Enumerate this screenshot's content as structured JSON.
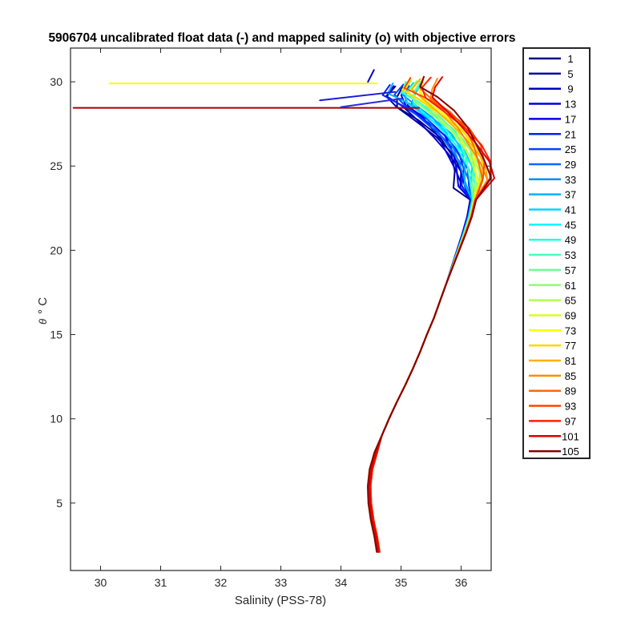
{
  "chart_data": {
    "type": "line",
    "title": "5906704 uncalibrated float data (-) and mapped salinity (o) with objective errors",
    "xlabel": "Salinity (PSS-78)",
    "ylabel_symbol": "θ",
    "ylabel_unit": "° C",
    "xlim": [
      29.5,
      36.5
    ],
    "ylim": [
      1.0,
      32.0
    ],
    "xticks": [
      30,
      31,
      32,
      33,
      34,
      35,
      36
    ],
    "yticks": [
      5,
      10,
      15,
      20,
      25,
      30
    ],
    "grid": false,
    "legend_position": "outside-right",
    "base_profile": [
      [
        34.62,
        2.1
      ],
      [
        34.58,
        3.0
      ],
      [
        34.52,
        4.0
      ],
      [
        34.48,
        5.0
      ],
      [
        34.47,
        6.0
      ],
      [
        34.5,
        7.0
      ],
      [
        34.58,
        8.0
      ],
      [
        34.68,
        9.0
      ],
      [
        34.8,
        10.0
      ],
      [
        34.93,
        11.0
      ],
      [
        35.07,
        12.0
      ],
      [
        35.2,
        13.0
      ],
      [
        35.32,
        14.0
      ],
      [
        35.43,
        15.0
      ],
      [
        35.55,
        16.0
      ],
      [
        35.65,
        17.0
      ],
      [
        35.75,
        18.0
      ],
      [
        35.85,
        19.0
      ],
      [
        35.95,
        20.0
      ],
      [
        36.05,
        21.0
      ],
      [
        36.14,
        22.0
      ],
      [
        36.2,
        23.0
      ],
      [
        36.22,
        24.0
      ],
      [
        36.18,
        25.0
      ],
      [
        36.05,
        26.0
      ],
      [
        35.85,
        27.0
      ],
      [
        35.55,
        28.0
      ],
      [
        35.25,
        28.8
      ],
      [
        35.1,
        29.4
      ],
      [
        35.2,
        30.0
      ]
    ],
    "series": [
      {
        "name": "1",
        "color": "#000087"
      },
      {
        "name": "5",
        "color": "#0000a3"
      },
      {
        "name": "9",
        "color": "#0000bf"
      },
      {
        "name": "13",
        "color": "#0000db"
      },
      {
        "name": "17",
        "color": "#0000f7"
      },
      {
        "name": "21",
        "color": "#0021ff"
      },
      {
        "name": "25",
        "color": "#0045ff"
      },
      {
        "name": "29",
        "color": "#0069ff"
      },
      {
        "name": "33",
        "color": "#008dff"
      },
      {
        "name": "37",
        "color": "#00b1ff"
      },
      {
        "name": "41",
        "color": "#00d5ff"
      },
      {
        "name": "45",
        "color": "#00f9ff"
      },
      {
        "name": "49",
        "color": "#21ffde"
      },
      {
        "name": "53",
        "color": "#45ffba"
      },
      {
        "name": "57",
        "color": "#69ff96"
      },
      {
        "name": "61",
        "color": "#8dff72"
      },
      {
        "name": "65",
        "color": "#b1ff4e"
      },
      {
        "name": "69",
        "color": "#d5ff2a"
      },
      {
        "name": "73",
        "color": "#f9ff06"
      },
      {
        "name": "77",
        "color": "#ffd500"
      },
      {
        "name": "81",
        "color": "#ffb100"
      },
      {
        "name": "85",
        "color": "#ff8d00"
      },
      {
        "name": "89",
        "color": "#ff6900"
      },
      {
        "name": "93",
        "color": "#ff4500"
      },
      {
        "name": "97",
        "color": "#ff2100"
      },
      {
        "name": "101",
        "color": "#df0000"
      },
      {
        "name": "105",
        "color": "#870000"
      }
    ],
    "outlier_segments": [
      {
        "series": "69",
        "color": "#f9ff06",
        "x": [
          30.15,
          34.6
        ],
        "y": [
          29.9,
          29.9
        ]
      },
      {
        "series": "101",
        "color": "#a60000",
        "x": [
          29.55,
          35.3
        ],
        "y": [
          28.45,
          28.45
        ]
      },
      {
        "series": "13",
        "color": "#1a1ad8",
        "x": [
          33.65,
          34.9
        ],
        "y": [
          28.9,
          29.4
        ]
      },
      {
        "series": "17",
        "color": "#2a2ae0",
        "x": [
          34.0,
          35.0
        ],
        "y": [
          28.5,
          29.0
        ]
      },
      {
        "series": "9",
        "color": "#0000c8",
        "x": [
          34.45,
          34.55
        ],
        "y": [
          30.0,
          30.7
        ]
      }
    ]
  }
}
